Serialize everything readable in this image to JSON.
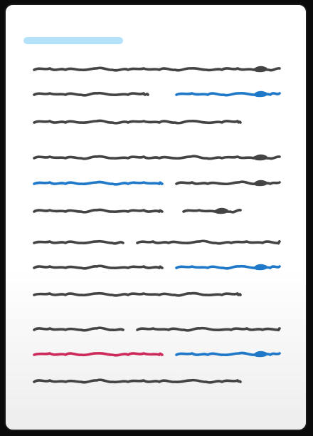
{
  "colors": {
    "title_bar": "#b4e2fb",
    "ink": "#444444",
    "blue": "#1f78c8",
    "red": "#cc2a5a"
  },
  "lines": [
    {
      "segments": [
        {
          "color": "ink",
          "heavy": true
        }
      ]
    },
    {
      "segments": [
        {
          "color": "ink"
        },
        {
          "color": "blue",
          "heavy": true
        }
      ]
    },
    {
      "segments": [
        {
          "color": "ink"
        }
      ]
    },
    {
      "segments": [
        {
          "color": "ink",
          "heavy": true
        }
      ]
    },
    {
      "segments": [
        {
          "color": "blue"
        },
        {
          "color": "ink",
          "heavy": true
        }
      ]
    },
    {
      "segments": [
        {
          "color": "ink"
        },
        {
          "color": "ink",
          "heavy": true
        }
      ]
    },
    {
      "segments": [
        {
          "color": "ink"
        },
        {
          "color": "ink"
        }
      ]
    },
    {
      "segments": [
        {
          "color": "ink"
        },
        {
          "color": "blue",
          "heavy": true
        }
      ]
    },
    {
      "segments": [
        {
          "color": "ink"
        }
      ]
    },
    {
      "segments": [
        {
          "color": "ink"
        },
        {
          "color": "ink"
        }
      ]
    },
    {
      "segments": [
        {
          "color": "red"
        },
        {
          "color": "blue",
          "heavy": true
        }
      ]
    },
    {
      "segments": [
        {
          "color": "ink"
        }
      ]
    }
  ]
}
